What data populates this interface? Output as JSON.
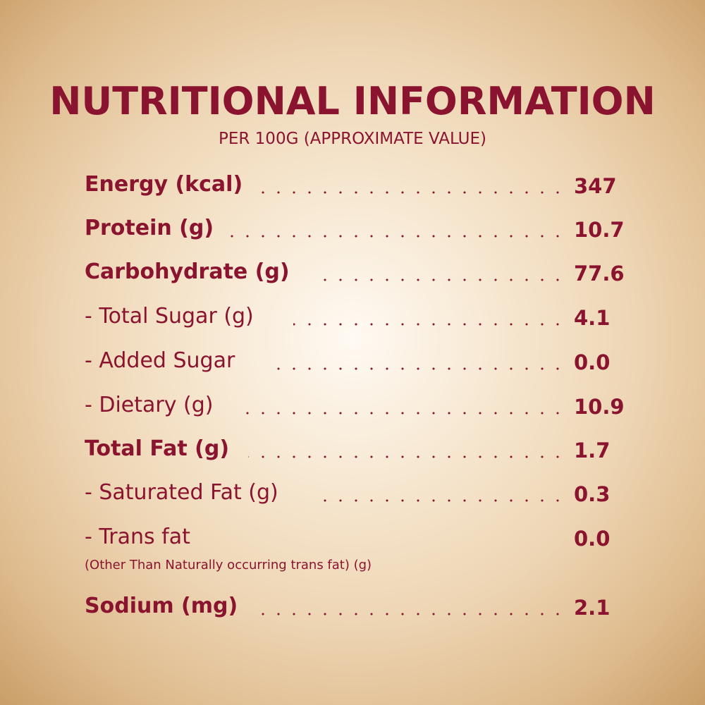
{
  "title": "NUTRITIONAL INFORMATION",
  "subtitle": "PER 100G (APPROXIMATE VALUE)",
  "rows": [
    {
      "label": "Energy (kcal)",
      "value": "347"
    },
    {
      "label": "Protein (g)",
      "value": "10.7"
    },
    {
      "label": "Carbohydrate (g)",
      "value": "77.6"
    },
    {
      "label": "- Total Sugar (g)",
      "value": "4.1"
    },
    {
      "label": "- Added Sugar",
      "value": "0.0"
    },
    {
      "label": "- Dietary (g)",
      "value": "10.9"
    },
    {
      "label": "Total Fat (g)",
      "value": "1.7"
    },
    {
      "label": "- Saturated Fat (g)",
      "value": "0.3"
    },
    {
      "label": "- Trans fat",
      "value": "0.0",
      "note": "(Other Than Naturally occurring trans fat) (g)"
    },
    {
      "label": "Sodium (mg)",
      "value": "2.1"
    }
  ],
  "colors": {
    "text": "#8a1430",
    "background_center": "#fffaf3",
    "background_edge": "#c99e68"
  }
}
